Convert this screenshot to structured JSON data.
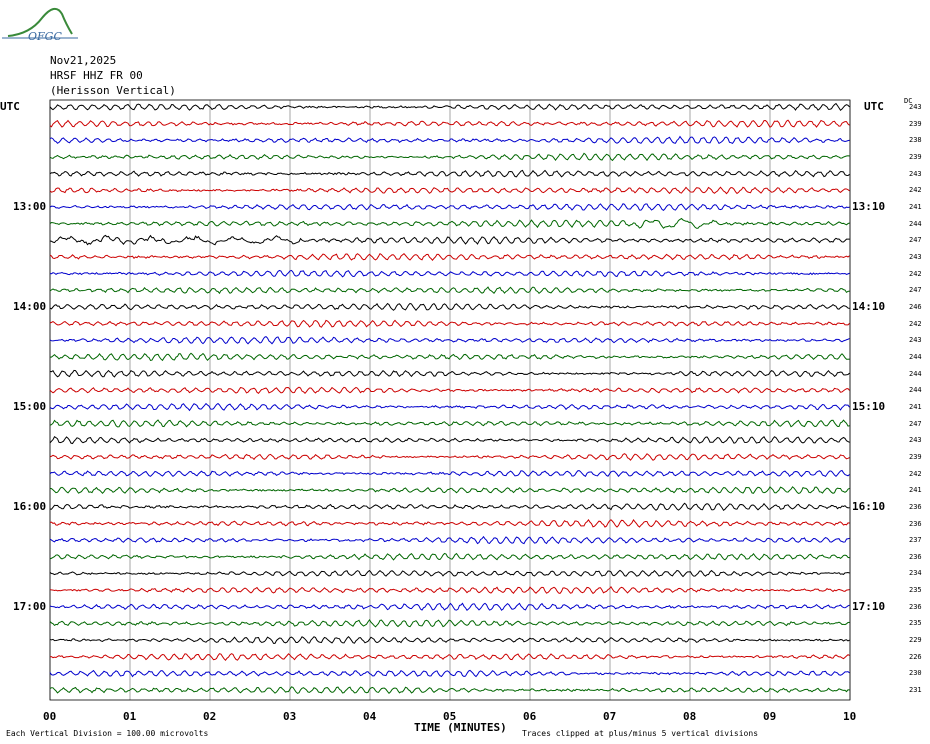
{
  "header": {
    "logo_text": "OFGC",
    "date": "Nov21,2025",
    "station": "HRSF HHZ FR 00",
    "location": "(Herisson Vertical)"
  },
  "left_axis_label": "UTC",
  "right_axis_label": "UTC",
  "dc_header": "DC",
  "left_time_labels": [
    "13:00",
    "14:00",
    "15:00",
    "16:00",
    "17:00"
  ],
  "right_time_labels": [
    "13:10",
    "14:10",
    "15:10",
    "16:10",
    "17:10"
  ],
  "dc_values": [
    "243",
    "239",
    "238",
    "239",
    "243",
    "242",
    "241",
    "244",
    "247",
    "243",
    "242",
    "247",
    "246",
    "242",
    "243",
    "244",
    "244",
    "244",
    "241",
    "247",
    "243",
    "239",
    "242",
    "241",
    "236",
    "236",
    "237",
    "236",
    "234",
    "235",
    "236",
    "235",
    "229",
    "226",
    "230",
    "231"
  ],
  "trace_colors": [
    "#000000",
    "#cc0000",
    "#0000cc",
    "#006600"
  ],
  "x_ticks": [
    "00",
    "01",
    "02",
    "03",
    "04",
    "05",
    "06",
    "07",
    "08",
    "09",
    "10"
  ],
  "x_axis_title": "TIME (MINUTES)",
  "footer": {
    "left": "Each Vertical Division =  100.00 microvolts",
    "right": "Traces clipped at plus/minus 5 vertical divisions"
  }
}
